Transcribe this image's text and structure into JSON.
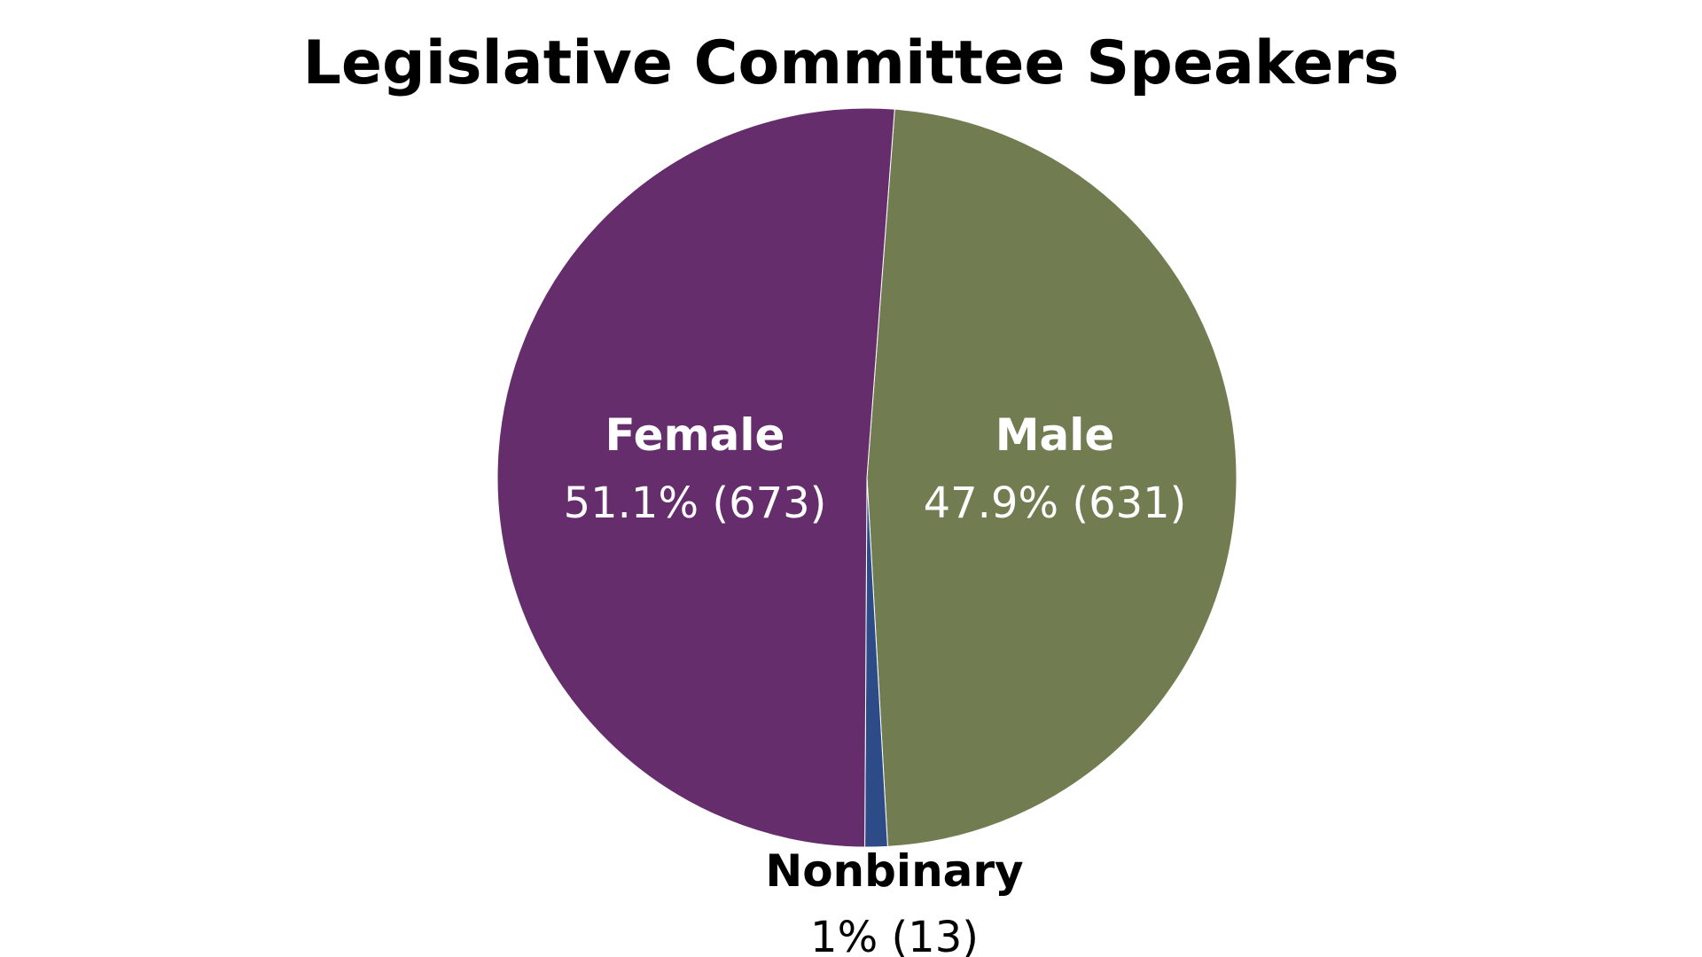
{
  "chart_data": {
    "type": "pie",
    "title": "Legislative Committee Speakers",
    "slices": [
      {
        "name": "Male",
        "value": 631,
        "percent": "47.9%",
        "value_label": "47.9% (631)",
        "color": "#717c51"
      },
      {
        "name": "Nonbinary",
        "value": 13,
        "percent": "1%",
        "value_label": "1% (13)",
        "color": "#2d4b86"
      },
      {
        "name": "Female",
        "value": 673,
        "percent": "51.1%",
        "value_label": "51.1% (673)",
        "color": "#652d6b"
      }
    ],
    "start_direction": "clockwise from slightly right of 12 o'clock",
    "legend": "none"
  }
}
